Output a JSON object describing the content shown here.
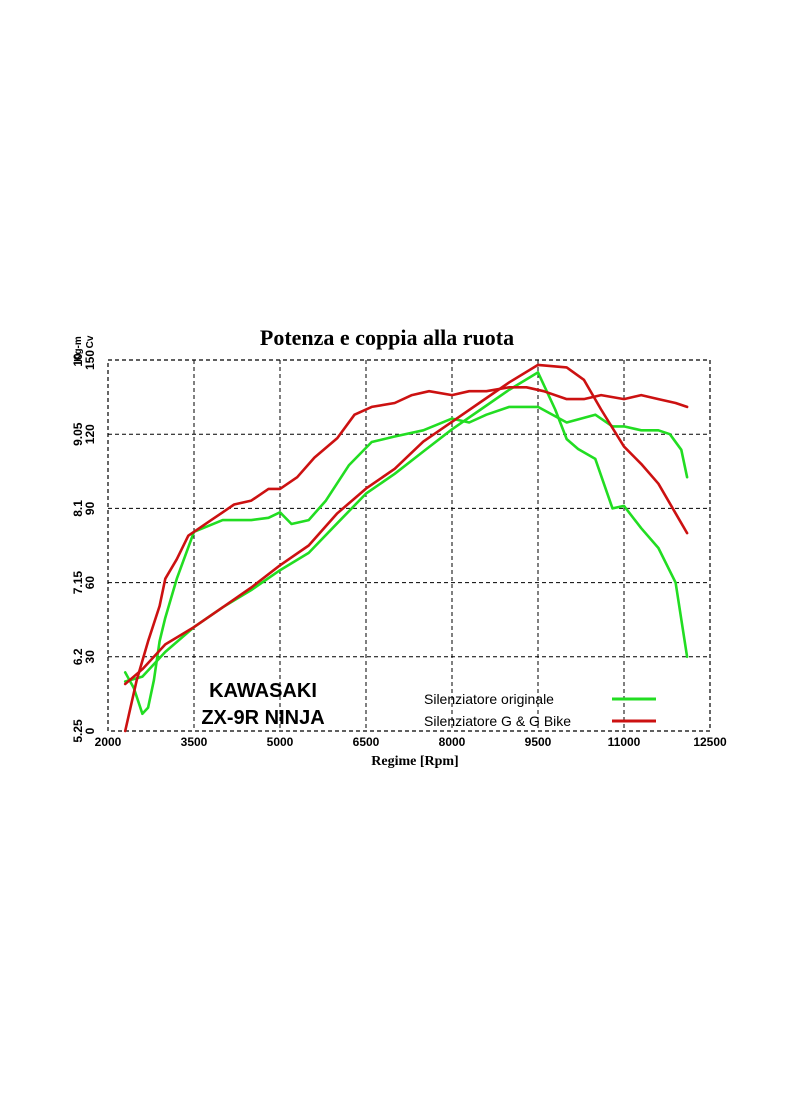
{
  "chart_data": {
    "type": "line",
    "title": "Potenza e coppia alla ruota",
    "xlabel": "Regime [Rpm]",
    "x_ticks": [
      "2000",
      "3500",
      "5000",
      "6500",
      "8000",
      "9500",
      "11000",
      "12500"
    ],
    "xlim": [
      2000,
      12500
    ],
    "y_left_outer_label": "Kg-m",
    "y_left_outer_ticks": [
      "5.25",
      "6.2",
      "7.15",
      "8.1",
      "9.05",
      "10"
    ],
    "y_left_inner_label": "Cv",
    "y_left_inner_ticks": [
      "0",
      "30",
      "60",
      "90",
      "120",
      "150"
    ],
    "ylim_cv": [
      0,
      150
    ],
    "ylim_kgm": [
      5.25,
      10
    ],
    "grid": true,
    "legend_position": "bottom-right",
    "annotation": [
      "KAWASAKI",
      "ZX-9R NINJA"
    ],
    "colors": {
      "originale": "#22dd22",
      "gg": "#cc1111"
    },
    "series": [
      {
        "name": "Silenziatore originale",
        "quantity": "torque",
        "color": "#22dd22",
        "x": [
          2300,
          2450,
          2600,
          2700,
          2800,
          2900,
          3000,
          3200,
          3500,
          4000,
          4500,
          4800,
          5000,
          5200,
          5500,
          5800,
          6200,
          6600,
          7000,
          7500,
          8000,
          8300,
          8600,
          9000,
          9500,
          10000,
          10500,
          10800,
          11000,
          11300,
          11600,
          11800,
          12000,
          12100
        ],
        "y": [
          6.0,
          5.8,
          5.47,
          5.55,
          5.9,
          6.4,
          6.7,
          7.2,
          7.8,
          7.95,
          7.95,
          7.98,
          8.05,
          7.9,
          7.95,
          8.2,
          8.65,
          8.95,
          9.02,
          9.1,
          9.25,
          9.2,
          9.3,
          9.4,
          9.4,
          9.2,
          9.3,
          9.15,
          9.15,
          9.1,
          9.1,
          9.05,
          8.85,
          8.5
        ]
      },
      {
        "name": "Silenziatore originale",
        "quantity": "power",
        "color": "#22dd22",
        "x": [
          2300,
          2600,
          3000,
          3500,
          4000,
          4500,
          5000,
          5500,
          6000,
          6500,
          7000,
          7500,
          8000,
          8500,
          9000,
          9500,
          9800,
          10000,
          10200,
          10500,
          10800,
          11000,
          11300,
          11600,
          11900,
          12100
        ],
        "y": [
          20,
          22,
          32,
          42,
          50,
          57,
          65,
          72,
          84,
          96,
          104,
          113,
          122,
          130,
          138,
          145,
          130,
          118,
          114,
          110,
          90,
          91,
          82,
          74,
          60,
          30
        ]
      },
      {
        "name": "Silenziatore G & G Bike",
        "quantity": "torque",
        "color": "#cc1111",
        "x": [
          2300,
          2500,
          2700,
          2900,
          3000,
          3200,
          3400,
          3600,
          3800,
          4000,
          4200,
          4500,
          4800,
          5000,
          5300,
          5600,
          6000,
          6300,
          6600,
          7000,
          7300,
          7600,
          8000,
          8300,
          8600,
          9000,
          9300,
          9600,
          10000,
          10300,
          10600,
          11000,
          11300,
          11600,
          11900,
          12100
        ],
        "y": [
          5.25,
          5.9,
          6.4,
          6.85,
          7.2,
          7.45,
          7.75,
          7.85,
          7.95,
          8.05,
          8.15,
          8.2,
          8.35,
          8.35,
          8.5,
          8.75,
          9.0,
          9.3,
          9.4,
          9.45,
          9.55,
          9.6,
          9.55,
          9.6,
          9.6,
          9.65,
          9.65,
          9.6,
          9.5,
          9.5,
          9.55,
          9.5,
          9.55,
          9.5,
          9.45,
          9.4
        ]
      },
      {
        "name": "Silenziatore G & G Bike",
        "quantity": "power",
        "color": "#cc1111",
        "x": [
          2300,
          2600,
          3000,
          3500,
          4000,
          4500,
          5000,
          5500,
          6000,
          6500,
          7000,
          7500,
          8000,
          8500,
          9000,
          9500,
          10000,
          10300,
          10600,
          11000,
          11300,
          11600,
          11900,
          12100
        ],
        "y": [
          19,
          25,
          35,
          42,
          50,
          58,
          67,
          75,
          88,
          98,
          106,
          117,
          125,
          133,
          141,
          148,
          147,
          142,
          130,
          115,
          108,
          100,
          88,
          80
        ]
      }
    ]
  }
}
